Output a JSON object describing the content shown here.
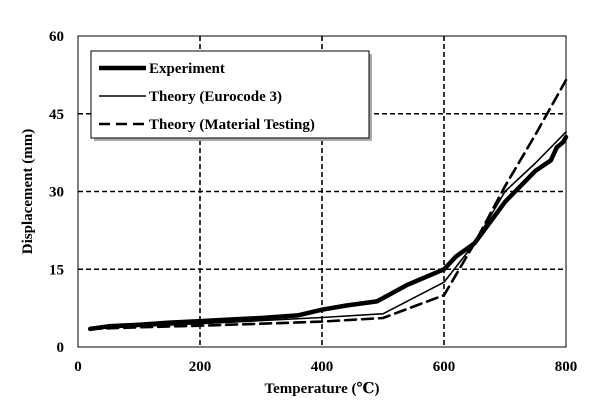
{
  "chart_data": {
    "type": "line",
    "title": "",
    "xlabel": "Temperature (℃)",
    "ylabel": "Displacement (mm)",
    "xlim": [
      0,
      800
    ],
    "ylim": [
      0,
      60
    ],
    "xticks": [
      0,
      200,
      400,
      600,
      800
    ],
    "yticks": [
      0,
      15,
      30,
      45,
      60
    ],
    "grid": true,
    "legend_position": "top-left",
    "series": [
      {
        "name": "Experiment",
        "style": "thick-solid",
        "color": "#000000",
        "x": [
          20,
          50,
          100,
          150,
          200,
          250,
          300,
          360,
          400,
          440,
          490,
          540,
          600,
          620,
          650,
          700,
          750,
          775,
          785,
          795,
          800
        ],
        "y": [
          3.5,
          4.0,
          4.3,
          4.7,
          5.0,
          5.3,
          5.6,
          6.1,
          7.2,
          8.0,
          8.8,
          12.0,
          15.0,
          17.5,
          20.0,
          28.0,
          34.0,
          36.0,
          38.5,
          39.5,
          40.5
        ]
      },
      {
        "name": "Theory (Eurocode 3)",
        "style": "thin-solid",
        "color": "#000000",
        "x": [
          20,
          100,
          200,
          300,
          400,
          500,
          600,
          650,
          700,
          750,
          800
        ],
        "y": [
          3.5,
          4.0,
          4.5,
          5.1,
          5.7,
          6.4,
          12.5,
          20.0,
          30.0,
          35.5,
          41.5
        ]
      },
      {
        "name": "Theory (Material Testing)",
        "style": "dashed",
        "color": "#000000",
        "x": [
          20,
          100,
          200,
          300,
          400,
          500,
          600,
          650,
          700,
          750,
          800
        ],
        "y": [
          3.5,
          3.8,
          4.1,
          4.5,
          4.9,
          5.6,
          10.0,
          20.0,
          31.0,
          41.0,
          51.5
        ]
      }
    ]
  }
}
